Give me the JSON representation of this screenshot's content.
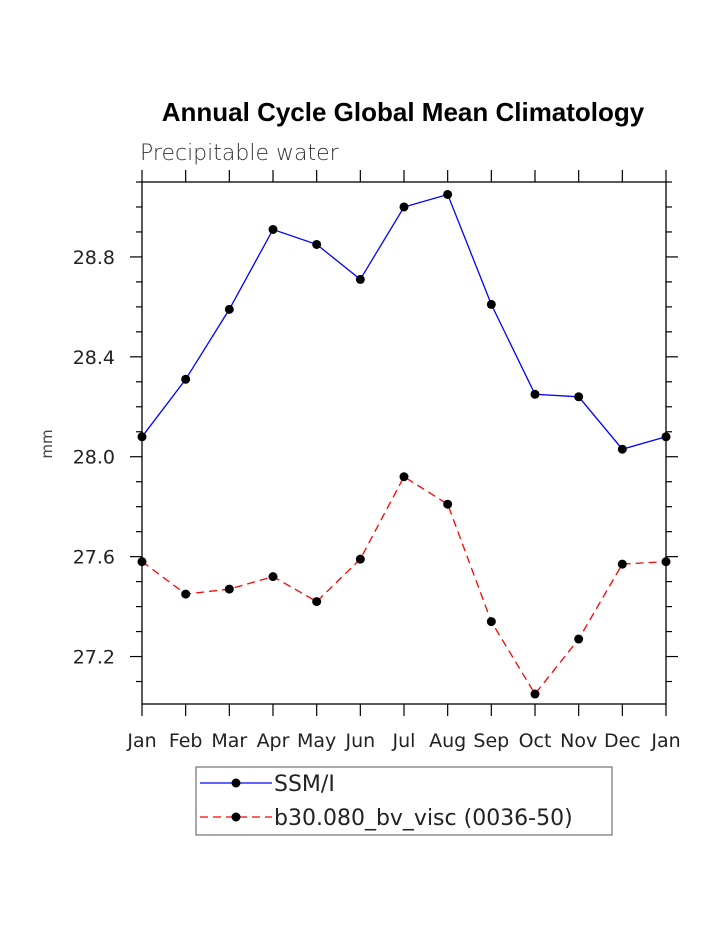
{
  "chart_data": {
    "type": "line",
    "title": "Annual Cycle Global Mean Climatology",
    "subtitle": "Precipitable water",
    "xlabel": "",
    "ylabel": "mm",
    "categories": [
      "Jan",
      "Feb",
      "Mar",
      "Apr",
      "May",
      "Jun",
      "Jul",
      "Aug",
      "Sep",
      "Oct",
      "Nov",
      "Dec",
      "Jan"
    ],
    "ylim": [
      27.01,
      29.1
    ],
    "yticks": [
      "27.2",
      "27.6",
      "28.0",
      "28.4",
      "28.8"
    ],
    "series": [
      {
        "name": "SSM/I",
        "color": "#0000ff",
        "dash": "solid",
        "values": [
          28.08,
          28.31,
          28.59,
          28.91,
          28.85,
          28.71,
          29.0,
          29.05,
          28.61,
          28.25,
          28.24,
          28.03,
          28.08
        ]
      },
      {
        "name": "b30.080_bv_visc (0036-50)",
        "color": "#ff0000",
        "dash": "dashed",
        "values": [
          27.58,
          27.45,
          27.47,
          27.52,
          27.42,
          27.59,
          27.92,
          27.81,
          27.34,
          27.05,
          27.27,
          27.57,
          27.58
        ]
      }
    ],
    "legend_position": "bottom"
  }
}
